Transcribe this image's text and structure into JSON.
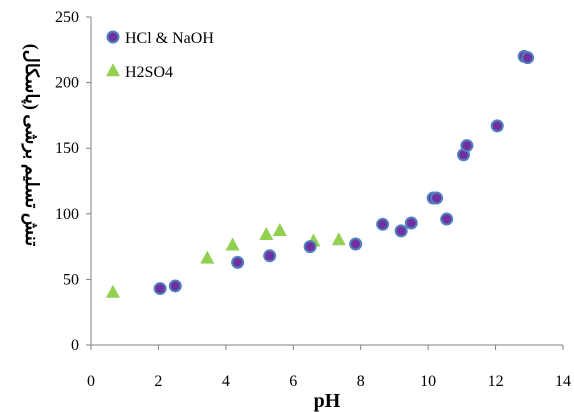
{
  "chart_data": {
    "type": "scatter",
    "xlabel": "pH",
    "ylabel": "تنش تسلیم برشی (پاسکال)",
    "xlim": [
      0,
      14
    ],
    "ylim": [
      0,
      250
    ],
    "x_ticks": [
      0,
      2,
      4,
      6,
      8,
      10,
      12,
      14
    ],
    "y_ticks": [
      0,
      50,
      100,
      150,
      200,
      250
    ],
    "grid": false,
    "legend_position": "top-left",
    "series": [
      {
        "name": "HCl & NaOH",
        "marker": "circle",
        "color": "#7030A0",
        "edge_color": "#4F81BD",
        "points": [
          {
            "x": 2.05,
            "y": 43
          },
          {
            "x": 2.5,
            "y": 45
          },
          {
            "x": 4.35,
            "y": 63
          },
          {
            "x": 5.3,
            "y": 68
          },
          {
            "x": 6.5,
            "y": 75
          },
          {
            "x": 7.85,
            "y": 77
          },
          {
            "x": 8.65,
            "y": 92
          },
          {
            "x": 9.2,
            "y": 87
          },
          {
            "x": 9.5,
            "y": 93
          },
          {
            "x": 10.15,
            "y": 112
          },
          {
            "x": 10.25,
            "y": 112
          },
          {
            "x": 10.55,
            "y": 96
          },
          {
            "x": 11.05,
            "y": 145
          },
          {
            "x": 11.15,
            "y": 152
          },
          {
            "x": 12.05,
            "y": 167
          },
          {
            "x": 12.85,
            "y": 220
          },
          {
            "x": 12.95,
            "y": 219
          }
        ]
      },
      {
        "name": "H2SO4",
        "marker": "triangle",
        "color": "#92D050",
        "points": [
          {
            "x": 0.65,
            "y": 40
          },
          {
            "x": 3.45,
            "y": 66
          },
          {
            "x": 4.2,
            "y": 76
          },
          {
            "x": 5.2,
            "y": 84
          },
          {
            "x": 5.6,
            "y": 87
          },
          {
            "x": 6.6,
            "y": 79
          },
          {
            "x": 7.35,
            "y": 80
          }
        ]
      }
    ]
  }
}
